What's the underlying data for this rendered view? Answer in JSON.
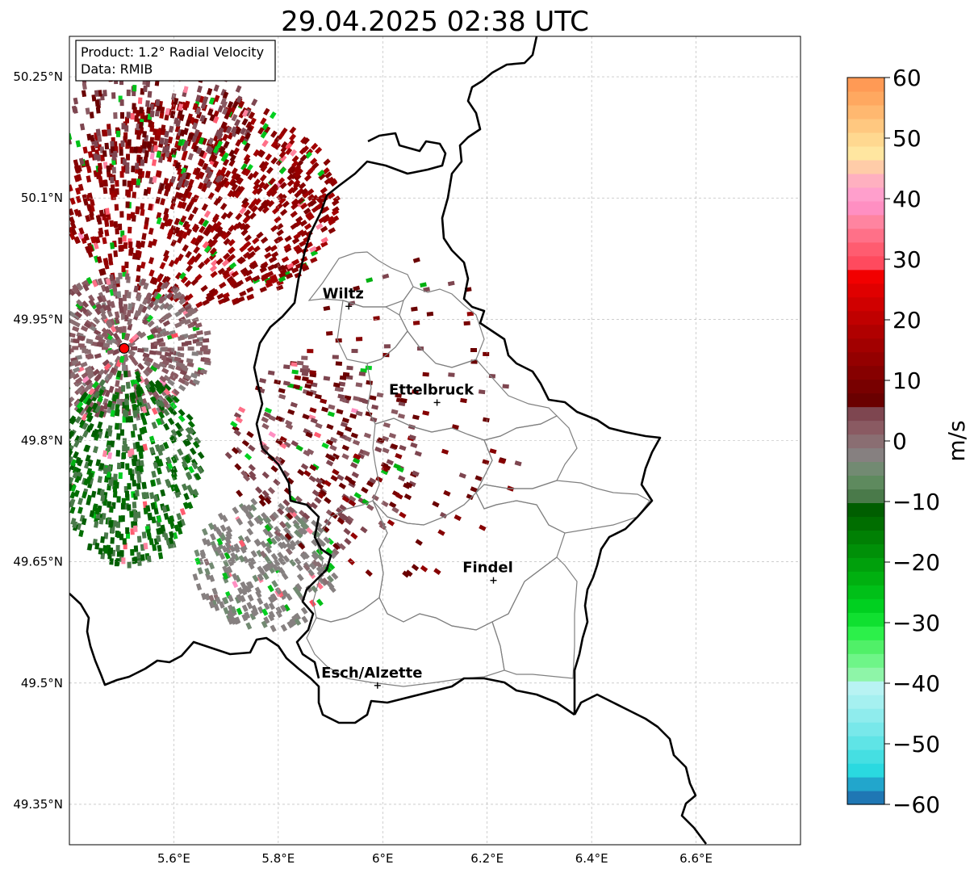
{
  "title": "29.04.2025 02:38 UTC",
  "info_box": {
    "product": "Product: 1.2° Radial Velocity",
    "data": "Data: RMIB"
  },
  "map": {
    "lon_range": [
      5.4,
      6.8
    ],
    "lat_range": [
      49.3,
      50.3
    ],
    "lon_ticks": [
      {
        "value": 5.6,
        "label": "5.6°E"
      },
      {
        "value": 5.8,
        "label": "5.8°E"
      },
      {
        "value": 6.0,
        "label": "6°E"
      },
      {
        "value": 6.2,
        "label": "6.2°E"
      },
      {
        "value": 6.4,
        "label": "6.4°E"
      },
      {
        "value": 6.6,
        "label": "6.6°E"
      }
    ],
    "lat_ticks": [
      {
        "value": 50.25,
        "label": "50.25°N"
      },
      {
        "value": 50.1,
        "label": "50.1°N"
      },
      {
        "value": 49.95,
        "label": "49.95°N"
      },
      {
        "value": 49.8,
        "label": "49.8°N"
      },
      {
        "value": 49.65,
        "label": "49.65°N"
      },
      {
        "value": 49.5,
        "label": "49.5°N"
      },
      {
        "value": 49.35,
        "label": "49.35°N"
      }
    ],
    "grid": true,
    "radar_site": {
      "lon": 5.505,
      "lat": 49.914,
      "color": "#ff0000"
    },
    "cities": [
      {
        "name": "Wiltz",
        "lon": 5.935,
        "lat": 49.966
      },
      {
        "name": "Ettelbruck",
        "lon": 6.104,
        "lat": 49.847
      },
      {
        "name": "Findel",
        "lon": 6.212,
        "lat": 49.627
      },
      {
        "name": "Esch/Alzette",
        "lon": 5.99,
        "lat": 49.497
      }
    ]
  },
  "colorbar": {
    "label": "m/s",
    "vmin": -60,
    "vmax": 60,
    "ticks": [
      {
        "value": 60,
        "label": "60"
      },
      {
        "value": 50,
        "label": "50"
      },
      {
        "value": 40,
        "label": "40"
      },
      {
        "value": 30,
        "label": "30"
      },
      {
        "value": 20,
        "label": "20"
      },
      {
        "value": 10,
        "label": "10"
      },
      {
        "value": 0,
        "label": "0"
      },
      {
        "value": -10,
        "label": "−10"
      },
      {
        "value": -20,
        "label": "−20"
      },
      {
        "value": -30,
        "label": "−30"
      },
      {
        "value": -40,
        "label": "−40"
      },
      {
        "value": -50,
        "label": "−50"
      },
      {
        "value": -60,
        "label": "−60"
      }
    ],
    "colors": [
      "#1f77b4",
      "#22a6cc",
      "#2ad9e0",
      "#45dfe2",
      "#5fe4e6",
      "#78e8ea",
      "#8feced",
      "#a5f0f0",
      "#b8f3f3",
      "#8ef5a8",
      "#6ef588",
      "#50f068",
      "#2cf04a",
      "#10e030",
      "#00d020",
      "#00c018",
      "#00b010",
      "#00a00c",
      "#009008",
      "#008004",
      "#006e00",
      "#005e00",
      "#4a7a4a",
      "#5e8a5e",
      "#728a72",
      "#868080",
      "#8a6e72",
      "#8a5a62",
      "#7e4650",
      "#6a0000",
      "#780000",
      "#860000",
      "#940000",
      "#a20000",
      "#b00000",
      "#c00000",
      "#d00000",
      "#e00000",
      "#f20000",
      "#ff4a5e",
      "#ff5c70",
      "#ff7088",
      "#ff84a0",
      "#ff8fc2",
      "#ff9fcc",
      "#ffb0c0",
      "#ffcca8",
      "#ffe6a0",
      "#ffd890",
      "#ffc880",
      "#ffb870",
      "#ffa860",
      "#ff9a55"
    ]
  }
}
